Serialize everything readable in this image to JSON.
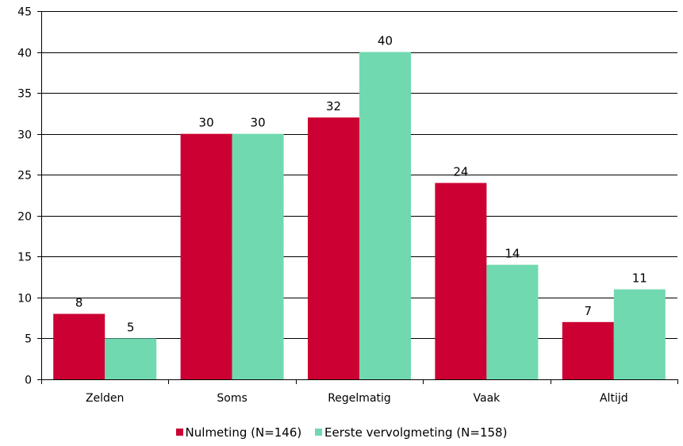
{
  "chart_data": {
    "type": "bar",
    "title": "",
    "xlabel": "",
    "ylabel": "",
    "categories": [
      "Zelden",
      "Soms",
      "Regelmatig",
      "Vaak",
      "Altijd"
    ],
    "series": [
      {
        "name": "Nulmeting (N=146)",
        "values": [
          8,
          30,
          32,
          24,
          7
        ],
        "color": "#cc0033"
      },
      {
        "name": "Eerste vervolgmeting (N=158)",
        "values": [
          5,
          30,
          40,
          14,
          11
        ],
        "color": "#70d9b0"
      }
    ],
    "ylim": [
      0,
      45
    ],
    "yticks": [
      0,
      5,
      10,
      15,
      20,
      25,
      30,
      35,
      40,
      45
    ],
    "grid": true,
    "legend_position": "bottom",
    "data_labels": true
  }
}
